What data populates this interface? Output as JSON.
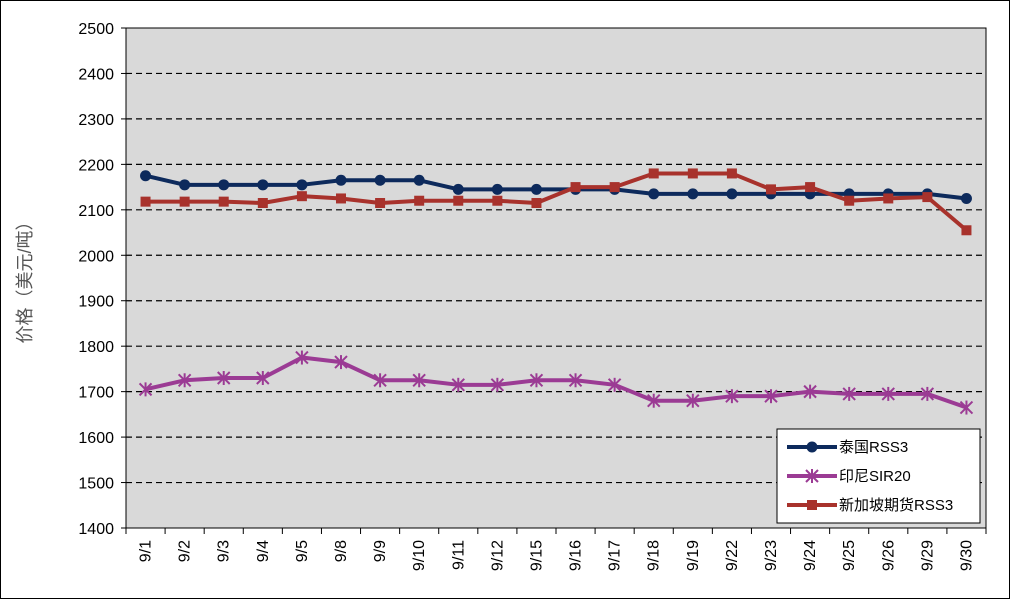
{
  "chart_data": {
    "type": "line",
    "title": "",
    "xlabel": "",
    "ylabel": "价格（美元/吨）",
    "ylim": [
      1400,
      2500
    ],
    "yticks": [
      1400,
      1500,
      1600,
      1700,
      1800,
      1900,
      2000,
      2100,
      2200,
      2300,
      2400,
      2500
    ],
    "grid": true,
    "legend_position": "bottom-right",
    "categories": [
      "9/1",
      "9/2",
      "9/3",
      "9/4",
      "9/5",
      "9/8",
      "9/9",
      "9/10",
      "9/11",
      "9/12",
      "9/15",
      "9/16",
      "9/17",
      "9/18",
      "9/19",
      "9/22",
      "9/23",
      "9/24",
      "9/25",
      "9/26",
      "9/29",
      "9/30"
    ],
    "series": [
      {
        "name": "泰国RSS3",
        "color": "#0d2a5c",
        "marker": "circle",
        "values": [
          2175,
          2155,
          2155,
          2155,
          2155,
          2165,
          2165,
          2165,
          2145,
          2145,
          2145,
          2145,
          2145,
          2135,
          2135,
          2135,
          2135,
          2135,
          2135,
          2135,
          2135,
          2125
        ]
      },
      {
        "name": "印尼SIR20",
        "color": "#9b3b94",
        "marker": "star",
        "values": [
          1705,
          1725,
          1730,
          1730,
          1775,
          1765,
          1725,
          1725,
          1715,
          1715,
          1725,
          1725,
          1715,
          1680,
          1680,
          1690,
          1690,
          1700,
          1695,
          1695,
          1695,
          1665
        ]
      },
      {
        "name": "新加坡期货RSS3",
        "color": "#a8322c",
        "marker": "square",
        "values": [
          2118,
          2118,
          2118,
          2115,
          2130,
          2125,
          2115,
          2120,
          2120,
          2120,
          2115,
          2150,
          2150,
          2180,
          2180,
          2180,
          2145,
          2150,
          2120,
          2125,
          2128,
          2055
        ]
      }
    ]
  }
}
